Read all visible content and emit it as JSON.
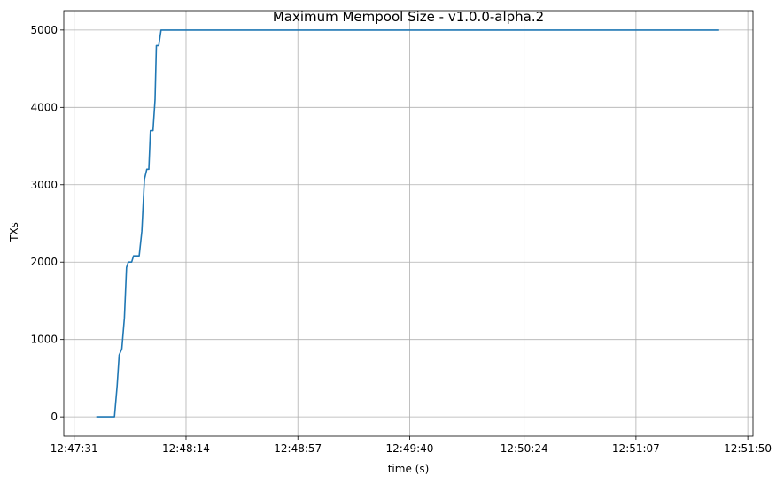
{
  "chart_data": {
    "type": "line",
    "title": "Maximum Mempool Size  -  v1.0.0-alpha.2",
    "xlabel": "time (s)",
    "ylabel": "TXs",
    "x_ticks": [
      {
        "t": 0,
        "label": "12:47:31"
      },
      {
        "t": 43,
        "label": "12:48:14"
      },
      {
        "t": 86,
        "label": "12:48:57"
      },
      {
        "t": 129,
        "label": "12:49:40"
      },
      {
        "t": 173,
        "label": "12:50:24"
      },
      {
        "t": 216,
        "label": "12:51:07"
      },
      {
        "t": 259,
        "label": "12:51:50"
      }
    ],
    "y_ticks": [
      0,
      1000,
      2000,
      3000,
      4000,
      5000
    ],
    "xlim": [
      -4,
      261
    ],
    "ylim": [
      -250,
      5250
    ],
    "grid": true,
    "color": "#1f77b4",
    "series": [
      {
        "x": [
          8.5,
          11,
          13,
          15.5,
          16.5,
          17.3,
          18.3,
          19.3,
          20.1,
          20.8,
          21.5,
          22.1,
          22.8,
          24,
          25,
          26,
          27,
          27.9,
          28.7,
          29.3,
          30.3,
          31.1,
          31.6,
          32.5,
          33.4,
          33.9,
          34.5,
          35.4,
          36.3,
          37.1,
          37.8,
          120,
          180,
          248
        ],
        "y": [
          0,
          0,
          0,
          0,
          400,
          800,
          880,
          1280,
          1930,
          2000,
          2000,
          2000,
          2080,
          2080,
          2080,
          2400,
          3070,
          3200,
          3200,
          3700,
          3700,
          4100,
          4800,
          4800,
          5000,
          5000,
          5000,
          5000,
          5000,
          5000,
          5000,
          5000,
          5000,
          5000
        ]
      }
    ]
  }
}
